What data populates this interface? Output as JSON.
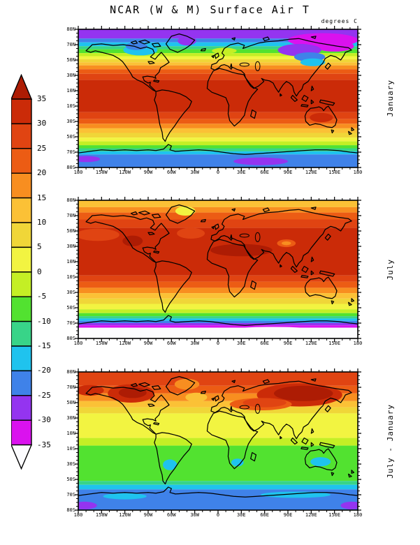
{
  "chart_data": {
    "type": "heatmap",
    "title": "NCAR (W & M) Surface Air T",
    "units": "degrees C",
    "projection": "equirectangular world maps, 180W to 180E, 90N to 90S",
    "x_tick_labels": [
      "180",
      "150W",
      "120W",
      "90W",
      "60W",
      "30W",
      "0",
      "30E",
      "60E",
      "90E",
      "120E",
      "150E",
      "180"
    ],
    "y_tick_labels": [
      "80N",
      "70N",
      "50N",
      "30N",
      "10N",
      "10S",
      "30S",
      "50S",
      "70S",
      "80S"
    ],
    "palette": {
      "gt35": {
        "color": "#ad1c04",
        "temp_c": "> 35"
      },
      "t30_35": {
        "color": "#cb2b08",
        "temp_c": "30 to 35"
      },
      "t25_30": {
        "color": "#e04412",
        "temp_c": "25 to 30"
      },
      "t20_25": {
        "color": "#ec5c14",
        "temp_c": "20 to 25"
      },
      "t15_20": {
        "color": "#f88e20",
        "temp_c": "15 to 20"
      },
      "t10_15": {
        "color": "#fbc136",
        "temp_c": "10 to 15"
      },
      "t5_10": {
        "color": "#f0d638",
        "temp_c": "5 to 10"
      },
      "t0_5": {
        "color": "#f2f441",
        "temp_c": "0 to 5"
      },
      "tm5_0": {
        "color": "#c4ef25",
        "temp_c": "-5 to 0"
      },
      "tm10_m5": {
        "color": "#52e230",
        "temp_c": "-10 to -5"
      },
      "tm15_m10": {
        "color": "#38d488",
        "temp_c": "-15 to -10"
      },
      "tm20_m15": {
        "color": "#1fc3ee",
        "temp_c": "-20 to -15"
      },
      "tm25_m20": {
        "color": "#3f82e9",
        "temp_c": "-25 to -20"
      },
      "tm30_m25": {
        "color": "#9434f0",
        "temp_c": "-30 to -25"
      },
      "tm35_m30": {
        "color": "#da12ee",
        "temp_c": "-35 to -30"
      },
      "ltm35": {
        "color": "#fcfcfe",
        "temp_c": "< -35"
      }
    },
    "colorbar": {
      "tick_values": [
        35,
        30,
        25,
        20,
        15,
        10,
        5,
        0,
        -5,
        -10,
        -15,
        -20,
        -25,
        -30,
        -35
      ],
      "segments": [
        "t30_35",
        "t25_30",
        "t20_25",
        "t15_20",
        "t10_15",
        "t5_10",
        "t0_5",
        "tm5_0",
        "tm10_m5",
        "tm15_m10",
        "tm20_m15",
        "tm25_m20",
        "tm30_m25",
        "tm35_m30"
      ],
      "above_arrow": "gt35",
      "below_arrow": "ltm35"
    },
    "panels": [
      {
        "id": "january",
        "label": "January",
        "zonal_bands": [
          {
            "from": 90,
            "to": 78,
            "k": "tm30_m25"
          },
          {
            "from": 78,
            "to": 73,
            "k": "tm25_m20"
          },
          {
            "from": 73,
            "to": 68,
            "k": "tm20_m15"
          },
          {
            "from": 68,
            "to": 64,
            "k": "tm15_m10"
          },
          {
            "from": 64,
            "to": 59,
            "k": "tm10_m5"
          },
          {
            "from": 59,
            "to": 55,
            "k": "tm5_0"
          },
          {
            "from": 55,
            "to": 51,
            "k": "t0_5"
          },
          {
            "from": 51,
            "to": 47,
            "k": "t5_10"
          },
          {
            "from": 47,
            "to": 43,
            "k": "t10_15"
          },
          {
            "from": 43,
            "to": 38,
            "k": "t15_20"
          },
          {
            "from": 38,
            "to": 32,
            "k": "t20_25"
          },
          {
            "from": 32,
            "to": 24,
            "k": "t25_30"
          },
          {
            "from": 24,
            "to": -18,
            "k": "t30_35"
          },
          {
            "from": -18,
            "to": -27,
            "k": "t25_30"
          },
          {
            "from": -27,
            "to": -33,
            "k": "t20_25"
          },
          {
            "from": -33,
            "to": -39,
            "k": "t15_20"
          },
          {
            "from": -39,
            "to": -45,
            "k": "t10_15"
          },
          {
            "from": -45,
            "to": -51,
            "k": "t5_10"
          },
          {
            "from": -51,
            "to": -56,
            "k": "t0_5"
          },
          {
            "from": -56,
            "to": -61,
            "k": "tm5_0"
          },
          {
            "from": -61,
            "to": -65,
            "k": "tm10_m5"
          },
          {
            "from": -65,
            "to": -69,
            "k": "tm15_m10"
          },
          {
            "from": -69,
            "to": -73,
            "k": "tm20_m15"
          },
          {
            "from": -73,
            "to": -90,
            "k": "tm25_m20"
          }
        ],
        "features": [
          {
            "name": "siberia-cold-pool",
            "lon": 135,
            "lat": 76,
            "rx": 45,
            "ry": 9,
            "k": "tm35_m30"
          },
          {
            "name": "siberia-cold-pool-2",
            "lon": 150,
            "lat": 68,
            "rx": 25,
            "ry": 7,
            "k": "tm35_m30"
          },
          {
            "name": "siberia-violet",
            "lon": 105,
            "lat": 63,
            "rx": 28,
            "ry": 8,
            "k": "tm30_m25"
          },
          {
            "name": "east-asia-blue-tongue",
            "lon": 118,
            "lat": 54,
            "rx": 20,
            "ry": 6,
            "k": "tm25_m20"
          },
          {
            "name": "east-asia-cyan-tongue",
            "lon": 122,
            "lat": 47,
            "rx": 16,
            "ry": 5,
            "k": "tm20_m15"
          },
          {
            "name": "canada-cold",
            "lon": -100,
            "lat": 63,
            "rx": 22,
            "ry": 7,
            "k": "tm20_m15"
          },
          {
            "name": "canada-cold-core",
            "lon": -105,
            "lat": 68,
            "rx": 14,
            "ry": 5,
            "k": "tm25_m20"
          },
          {
            "name": "greenland-cold",
            "lon": -40,
            "lat": 75,
            "rx": 12,
            "ry": 6,
            "k": "tm30_m25"
          },
          {
            "name": "norway-warm-tongue",
            "lon": 8,
            "lat": 62,
            "rx": 16,
            "ry": 4,
            "k": "tm5_0"
          },
          {
            "name": "australia-hot",
            "lon": 133,
            "lat": -25,
            "rx": 15,
            "ry": 6,
            "k": "t30_35"
          },
          {
            "name": "antarctica-violet",
            "lon": 55,
            "lat": -82,
            "rx": 35,
            "ry": 5,
            "k": "tm30_m25"
          },
          {
            "name": "antarctica-violet-west",
            "lon": -170,
            "lat": -79,
            "rx": 18,
            "ry": 4,
            "k": "tm30_m25"
          }
        ]
      },
      {
        "id": "july",
        "label": "July",
        "zonal_bands": [
          {
            "from": 90,
            "to": 81,
            "k": "t10_15"
          },
          {
            "from": 81,
            "to": 74,
            "k": "t15_20"
          },
          {
            "from": 74,
            "to": 65,
            "k": "t20_25"
          },
          {
            "from": 65,
            "to": 54,
            "k": "t25_30"
          },
          {
            "from": 54,
            "to": -8,
            "k": "t30_35"
          },
          {
            "from": -8,
            "to": -16,
            "k": "t25_30"
          },
          {
            "from": -16,
            "to": -24,
            "k": "t20_25"
          },
          {
            "from": -24,
            "to": -31,
            "k": "t15_20"
          },
          {
            "from": -31,
            "to": -38,
            "k": "t10_15"
          },
          {
            "from": -38,
            "to": -45,
            "k": "t5_10"
          },
          {
            "from": -45,
            "to": -52,
            "k": "t0_5"
          },
          {
            "from": -52,
            "to": -57,
            "k": "tm5_0"
          },
          {
            "from": -57,
            "to": -61,
            "k": "tm10_m5"
          },
          {
            "from": -61,
            "to": -64,
            "k": "tm15_m10"
          },
          {
            "from": -64,
            "to": -67,
            "k": "tm20_m15"
          },
          {
            "from": -67,
            "to": -70,
            "k": "tm25_m20"
          },
          {
            "from": -70,
            "to": -73,
            "k": "tm30_m25"
          },
          {
            "from": -73,
            "to": -76,
            "k": "tm35_m30"
          },
          {
            "from": -76,
            "to": -90,
            "k": "ltm35"
          }
        ],
        "features": [
          {
            "name": "greenland-cool",
            "lon": -42,
            "lat": 76,
            "rx": 13,
            "ry": 6,
            "k": "t0_5"
          },
          {
            "name": "sahara-arabia-hot",
            "lon": 30,
            "lat": 25,
            "rx": 40,
            "ry": 8,
            "k": "gt35"
          },
          {
            "name": "sw-north-america-hot",
            "lon": -110,
            "lat": 37,
            "rx": 13,
            "ry": 7,
            "k": "gt35"
          },
          {
            "name": "tibet-cool",
            "lon": 88,
            "lat": 34,
            "rx": 12,
            "ry": 5,
            "k": "t20_25"
          },
          {
            "name": "tibet-cool-core",
            "lon": 88,
            "lat": 34,
            "rx": 6,
            "ry": 2.5,
            "k": "t15_20"
          },
          {
            "name": "north-pacific-cooler",
            "lon": -155,
            "lat": 45,
            "rx": 28,
            "ry": 8,
            "k": "t25_30"
          },
          {
            "name": "north-atlantic-cooler",
            "lon": -35,
            "lat": 47,
            "rx": 18,
            "ry": 7,
            "k": "t25_30"
          },
          {
            "name": "antarctica-white-dome",
            "lon": 70,
            "lat": -82,
            "rx": 75,
            "ry": 7,
            "k": "ltm35"
          }
        ]
      },
      {
        "id": "july-minus-january",
        "label": "July - January",
        "zonal_bands": [
          {
            "from": 90,
            "to": 72,
            "k": "t25_30"
          },
          {
            "from": 72,
            "to": 62,
            "k": "t20_25"
          },
          {
            "from": 62,
            "to": 52,
            "k": "t15_20"
          },
          {
            "from": 52,
            "to": 44,
            "k": "t10_15"
          },
          {
            "from": 44,
            "to": 36,
            "k": "t5_10"
          },
          {
            "from": 36,
            "to": 4,
            "k": "t0_5"
          },
          {
            "from": 4,
            "to": -6,
            "k": "tm5_0"
          },
          {
            "from": -6,
            "to": -52,
            "k": "tm10_m5"
          },
          {
            "from": -52,
            "to": -57,
            "k": "tm15_m10"
          },
          {
            "from": -57,
            "to": -63,
            "k": "tm20_m15"
          },
          {
            "from": -63,
            "to": -90,
            "k": "tm25_m20"
          }
        ],
        "features": [
          {
            "name": "north-america-warm",
            "lon": -112,
            "lat": 62,
            "rx": 30,
            "ry": 12,
            "k": "t30_35"
          },
          {
            "name": "north-america-warm-core",
            "lon": -110,
            "lat": 63,
            "rx": 18,
            "ry": 7,
            "k": "gt35"
          },
          {
            "name": "alaska-warm",
            "lon": -165,
            "lat": 66,
            "rx": 18,
            "ry": 7,
            "k": "t30_35"
          },
          {
            "name": "siberia-warm",
            "lon": 105,
            "lat": 60,
            "rx": 55,
            "ry": 15,
            "k": "t30_35"
          },
          {
            "name": "siberia-warm-core",
            "lon": 110,
            "lat": 62,
            "rx": 38,
            "ry": 10,
            "k": "gt35"
          },
          {
            "name": "central-asia-warm",
            "lon": 55,
            "lat": 48,
            "rx": 40,
            "ry": 8,
            "k": "t20_25"
          },
          {
            "name": "central-asia-warm-core",
            "lon": 60,
            "lat": 50,
            "rx": 28,
            "ry": 6,
            "k": "t25_30"
          },
          {
            "name": "greenland-mild",
            "lon": -40,
            "lat": 74,
            "rx": 16,
            "ry": 7,
            "k": "t15_20"
          },
          {
            "name": "north-atlantic-mild",
            "lon": -28,
            "lat": 57,
            "rx": 14,
            "ry": 6,
            "k": "t10_15"
          },
          {
            "name": "south-america-cool",
            "lon": -62,
            "lat": -31,
            "rx": 9,
            "ry": 7,
            "k": "tm20_m15"
          },
          {
            "name": "south-africa-cool",
            "lon": 25,
            "lat": -28,
            "rx": 8,
            "ry": 5,
            "k": "tm20_m15"
          },
          {
            "name": "australia-cool",
            "lon": 132,
            "lat": -27,
            "rx": 13,
            "ry": 6,
            "k": "tm20_m15"
          },
          {
            "name": "antarctic-coast-cool",
            "lon": 100,
            "lat": -70,
            "rx": 45,
            "ry": 4,
            "k": "tm20_m15"
          },
          {
            "name": "antarctic-coast-cool-west",
            "lon": -120,
            "lat": -72,
            "rx": 28,
            "ry": 4,
            "k": "tm20_m15"
          },
          {
            "name": "antarctica-violet-sw",
            "lon": -172,
            "lat": -84,
            "rx": 16,
            "ry": 5,
            "k": "tm30_m25"
          },
          {
            "name": "antarctica-violet-se",
            "lon": 172,
            "lat": -84,
            "rx": 14,
            "ry": 5,
            "k": "tm30_m25"
          }
        ]
      }
    ]
  }
}
